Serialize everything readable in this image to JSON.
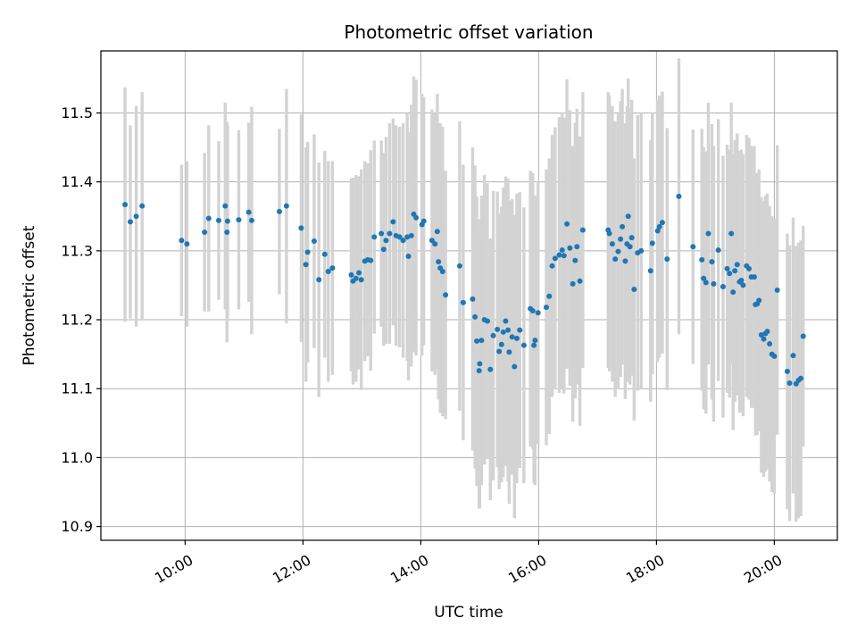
{
  "chart_data": {
    "type": "scatter",
    "title": "Photometric offset variation",
    "xlabel": "UTC time",
    "ylabel": "Photometric offset",
    "x_unit": "UTC time (decimal hours)",
    "xlim": [
      8.57,
      21.07
    ],
    "ylim": [
      10.88,
      11.59
    ],
    "x_ticks": [
      10,
      12,
      14,
      16,
      18,
      20
    ],
    "x_tick_labels": [
      "10:00",
      "12:00",
      "14:00",
      "16:00",
      "18:00",
      "20:00"
    ],
    "y_ticks": [
      10.9,
      11.0,
      11.1,
      11.2,
      11.3,
      11.4,
      11.5
    ],
    "y_tick_labels": [
      "10.9",
      "11.0",
      "11.1",
      "11.2",
      "11.3",
      "11.4",
      "11.5"
    ],
    "grid": true,
    "legend": "none",
    "colors": {
      "points": "#1f77b4",
      "errorbars": "#d3d3d3",
      "grid": "#b0b0b0"
    },
    "series": [
      {
        "points": [
          [
            8.98,
            11.367,
            0.17
          ],
          [
            9.07,
            11.342,
            0.14
          ],
          [
            9.17,
            11.35,
            0.16
          ],
          [
            9.27,
            11.365,
            0.165
          ],
          [
            9.94,
            11.315,
            0.11
          ],
          [
            10.03,
            11.31,
            0.12
          ],
          [
            10.33,
            11.327,
            0.115
          ],
          [
            10.4,
            11.347,
            0.135
          ],
          [
            10.57,
            11.344,
            0.115
          ],
          [
            10.68,
            11.365,
            0.15
          ],
          [
            10.71,
            11.327,
            0.16
          ],
          [
            10.72,
            11.343,
            0.14
          ],
          [
            10.91,
            11.345,
            0.13
          ],
          [
            11.08,
            11.356,
            0.13
          ],
          [
            11.13,
            11.344,
            0.165
          ],
          [
            11.6,
            11.357,
            0.12
          ],
          [
            11.72,
            11.365,
            0.17
          ],
          [
            11.97,
            11.333,
            0.165
          ],
          [
            12.05,
            11.28,
            0.17
          ],
          [
            12.08,
            11.298,
            0.16
          ],
          [
            12.19,
            11.314,
            0.155
          ],
          [
            12.27,
            11.258,
            0.17
          ],
          [
            12.37,
            11.295,
            0.15
          ],
          [
            12.43,
            11.27,
            0.16
          ],
          [
            12.5,
            11.275,
            0.155
          ],
          [
            12.82,
            11.265,
            0.14
          ],
          [
            12.85,
            11.256,
            0.15
          ],
          [
            12.9,
            11.26,
            0.15
          ],
          [
            12.95,
            11.268,
            0.14
          ],
          [
            12.99,
            11.258,
            0.16
          ],
          [
            13.05,
            11.285,
            0.145
          ],
          [
            13.1,
            11.287,
            0.14
          ],
          [
            13.15,
            11.286,
            0.16
          ],
          [
            13.21,
            11.32,
            0.14
          ],
          [
            13.33,
            11.325,
            0.135
          ],
          [
            13.37,
            11.302,
            0.14
          ],
          [
            13.41,
            11.315,
            0.15
          ],
          [
            13.47,
            11.325,
            0.16
          ],
          [
            13.53,
            11.342,
            0.15
          ],
          [
            13.58,
            11.322,
            0.16
          ],
          [
            13.64,
            11.32,
            0.16
          ],
          [
            13.7,
            11.315,
            0.17
          ],
          [
            13.77,
            11.32,
            0.18
          ],
          [
            13.79,
            11.292,
            0.18
          ],
          [
            13.84,
            11.322,
            0.19
          ],
          [
            13.88,
            11.353,
            0.2
          ],
          [
            13.92,
            11.348,
            0.2
          ],
          [
            14.02,
            11.338,
            0.19
          ],
          [
            14.05,
            11.343,
            0.18
          ],
          [
            14.19,
            11.315,
            0.19
          ],
          [
            14.24,
            11.31,
            0.19
          ],
          [
            14.28,
            11.328,
            0.2
          ],
          [
            14.3,
            11.284,
            0.2
          ],
          [
            14.33,
            11.275,
            0.21
          ],
          [
            14.37,
            11.27,
            0.21
          ],
          [
            14.42,
            11.236,
            0.18
          ],
          [
            14.66,
            11.278,
            0.21
          ],
          [
            14.72,
            11.225,
            0.2
          ],
          [
            14.88,
            11.23,
            0.22
          ],
          [
            14.92,
            11.204,
            0.22
          ],
          [
            14.95,
            11.169,
            0.21
          ],
          [
            14.99,
            11.126,
            0.2
          ],
          [
            15.0,
            11.136,
            0.21
          ],
          [
            15.03,
            11.17,
            0.21
          ],
          [
            15.08,
            11.2,
            0.21
          ],
          [
            15.13,
            11.198,
            0.2
          ],
          [
            15.18,
            11.128,
            0.19
          ],
          [
            15.23,
            11.177,
            0.21
          ],
          [
            15.3,
            11.186,
            0.2
          ],
          [
            15.33,
            11.154,
            0.2
          ],
          [
            15.37,
            11.164,
            0.2
          ],
          [
            15.4,
            11.182,
            0.21
          ],
          [
            15.44,
            11.198,
            0.21
          ],
          [
            15.48,
            11.185,
            0.22
          ],
          [
            15.5,
            11.153,
            0.22
          ],
          [
            15.55,
            11.175,
            0.2
          ],
          [
            15.59,
            11.132,
            0.22
          ],
          [
            15.63,
            11.173,
            0.21
          ],
          [
            15.68,
            11.185,
            0.2
          ],
          [
            15.75,
            11.163,
            0.2
          ],
          [
            15.86,
            11.216,
            0.2
          ],
          [
            15.9,
            11.213,
            0.2
          ],
          [
            15.92,
            11.163,
            0.2
          ],
          [
            15.94,
            11.17,
            0.21
          ],
          [
            15.99,
            11.21,
            0.19
          ],
          [
            16.13,
            11.218,
            0.2
          ],
          [
            16.18,
            11.234,
            0.2
          ],
          [
            16.23,
            11.278,
            0.19
          ],
          [
            16.28,
            11.289,
            0.19
          ],
          [
            16.35,
            11.294,
            0.2
          ],
          [
            16.4,
            11.301,
            0.2
          ],
          [
            16.43,
            11.293,
            0.2
          ],
          [
            16.48,
            11.339,
            0.21
          ],
          [
            16.53,
            11.304,
            0.2
          ],
          [
            16.58,
            11.252,
            0.2
          ],
          [
            16.62,
            11.286,
            0.2
          ],
          [
            16.65,
            11.306,
            0.2
          ],
          [
            16.7,
            11.256,
            0.21
          ],
          [
            16.75,
            11.33,
            0.2
          ],
          [
            17.18,
            11.33,
            0.2
          ],
          [
            17.2,
            11.325,
            0.2
          ],
          [
            17.25,
            11.31,
            0.2
          ],
          [
            17.3,
            11.288,
            0.2
          ],
          [
            17.35,
            11.299,
            0.2
          ],
          [
            17.39,
            11.317,
            0.2
          ],
          [
            17.42,
            11.335,
            0.2
          ],
          [
            17.47,
            11.285,
            0.2
          ],
          [
            17.5,
            11.31,
            0.2
          ],
          [
            17.52,
            11.35,
            0.2
          ],
          [
            17.55,
            11.306,
            0.2
          ],
          [
            17.58,
            11.319,
            0.2
          ],
          [
            17.62,
            11.244,
            0.19
          ],
          [
            17.68,
            11.297,
            0.2
          ],
          [
            17.74,
            11.3,
            0.2
          ],
          [
            17.9,
            11.271,
            0.19
          ],
          [
            17.93,
            11.311,
            0.19
          ],
          [
            18.02,
            11.329,
            0.19
          ],
          [
            18.05,
            11.335,
            0.19
          ],
          [
            18.1,
            11.341,
            0.19
          ],
          [
            18.18,
            11.288,
            0.19
          ],
          [
            18.38,
            11.379,
            0.2
          ],
          [
            18.62,
            11.306,
            0.17
          ],
          [
            18.77,
            11.287,
            0.19
          ],
          [
            18.8,
            11.26,
            0.19
          ],
          [
            18.84,
            11.254,
            0.19
          ],
          [
            18.88,
            11.325,
            0.19
          ],
          [
            18.94,
            11.284,
            0.2
          ],
          [
            18.97,
            11.252,
            0.2
          ],
          [
            19.05,
            11.301,
            0.19
          ],
          [
            19.13,
            11.248,
            0.19
          ],
          [
            19.2,
            11.274,
            0.18
          ],
          [
            19.24,
            11.267,
            0.18
          ],
          [
            19.27,
            11.325,
            0.19
          ],
          [
            19.3,
            11.24,
            0.2
          ],
          [
            19.33,
            11.271,
            0.19
          ],
          [
            19.37,
            11.28,
            0.19
          ],
          [
            19.41,
            11.255,
            0.19
          ],
          [
            19.44,
            11.257,
            0.19
          ],
          [
            19.47,
            11.25,
            0.19
          ],
          [
            19.53,
            11.278,
            0.19
          ],
          [
            19.57,
            11.274,
            0.19
          ],
          [
            19.61,
            11.262,
            0.19
          ],
          [
            19.66,
            11.262,
            0.19
          ],
          [
            19.68,
            11.222,
            0.19
          ],
          [
            19.71,
            11.223,
            0.19
          ],
          [
            19.74,
            11.228,
            0.19
          ],
          [
            19.78,
            11.178,
            0.2
          ],
          [
            19.82,
            11.172,
            0.2
          ],
          [
            19.85,
            11.18,
            0.2
          ],
          [
            19.88,
            11.183,
            0.2
          ],
          [
            19.92,
            11.165,
            0.2
          ],
          [
            19.96,
            11.15,
            0.2
          ],
          [
            20.0,
            11.147,
            0.2
          ],
          [
            20.05,
            11.243,
            0.21
          ],
          [
            20.22,
            11.125,
            0.2
          ],
          [
            20.26,
            11.108,
            0.2
          ],
          [
            20.32,
            11.148,
            0.2
          ],
          [
            20.37,
            11.107,
            0.2
          ],
          [
            20.41,
            11.112,
            0.2
          ],
          [
            20.45,
            11.115,
            0.2
          ],
          [
            20.49,
            11.176,
            0.16
          ]
        ]
      }
    ]
  }
}
